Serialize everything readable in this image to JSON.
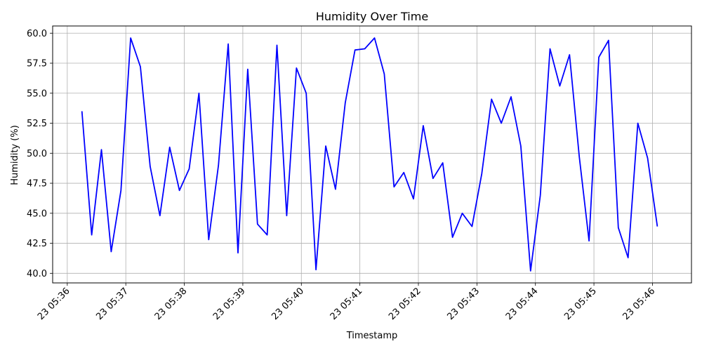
{
  "chart_data": {
    "type": "line",
    "title": "Humidity Over Time",
    "xlabel": "Timestamp",
    "ylabel": "Humidity (%)",
    "x_ticks": [
      "23 05:36",
      "23 05:37",
      "23 05:38",
      "23 05:39",
      "23 05:40",
      "23 05:41",
      "23 05:42",
      "23 05:43",
      "23 05:44",
      "23 05:45",
      "23 05:46"
    ],
    "y_ticks": [
      "40.0",
      "42.5",
      "45.0",
      "47.5",
      "50.0",
      "52.5",
      "55.0",
      "57.5",
      "60.0"
    ],
    "xlim": [
      "05:35:45",
      "05:46:40"
    ],
    "ylim": [
      39.2,
      60.6
    ],
    "grid": true,
    "line_color": "#0000ff",
    "series": [
      {
        "x": [
          "05:36:15",
          "05:36:25",
          "05:36:35",
          "05:36:45",
          "05:36:55",
          "05:37:05",
          "05:37:15",
          "05:37:25",
          "05:37:35",
          "05:37:45",
          "05:37:55",
          "05:38:05",
          "05:38:15",
          "05:38:25",
          "05:38:35",
          "05:38:45",
          "05:38:55",
          "05:39:05",
          "05:39:15",
          "05:39:25",
          "05:39:35",
          "05:39:45",
          "05:39:55",
          "05:40:05",
          "05:40:15",
          "05:40:25",
          "05:40:35",
          "05:40:45",
          "05:40:55",
          "05:41:05",
          "05:41:15",
          "05:41:25",
          "05:41:35",
          "05:41:45",
          "05:41:55",
          "05:42:05",
          "05:42:15",
          "05:42:25",
          "05:42:35",
          "05:42:45",
          "05:42:55",
          "05:43:05",
          "05:43:15",
          "05:43:25",
          "05:43:35",
          "05:43:45",
          "05:43:55",
          "05:44:05",
          "05:44:15",
          "05:44:25",
          "05:44:35",
          "05:44:45",
          "05:44:55",
          "05:45:05",
          "05:45:15",
          "05:45:25",
          "05:45:35",
          "05:45:45",
          "05:45:55",
          "05:46:05"
        ],
        "values": [
          53.5,
          43.2,
          50.3,
          41.8,
          46.9,
          59.6,
          57.2,
          48.9,
          44.8,
          50.5,
          46.9,
          48.7,
          55.0,
          42.8,
          49.0,
          59.1,
          41.7,
          57.0,
          44.1,
          43.2,
          59.0,
          44.8,
          57.1,
          55.0,
          40.3,
          50.6,
          47.0,
          54.2,
          58.6,
          58.7,
          59.6,
          56.6,
          47.2,
          48.4,
          46.2,
          52.3,
          47.9,
          49.2,
          43.0,
          45.0,
          43.9,
          48.3,
          54.5,
          52.5,
          54.7,
          50.6,
          40.2,
          46.5,
          58.7,
          55.6,
          58.2,
          49.7,
          42.7,
          58.0,
          59.4,
          43.8,
          41.3,
          52.5,
          49.6,
          43.9
        ]
      }
    ]
  }
}
